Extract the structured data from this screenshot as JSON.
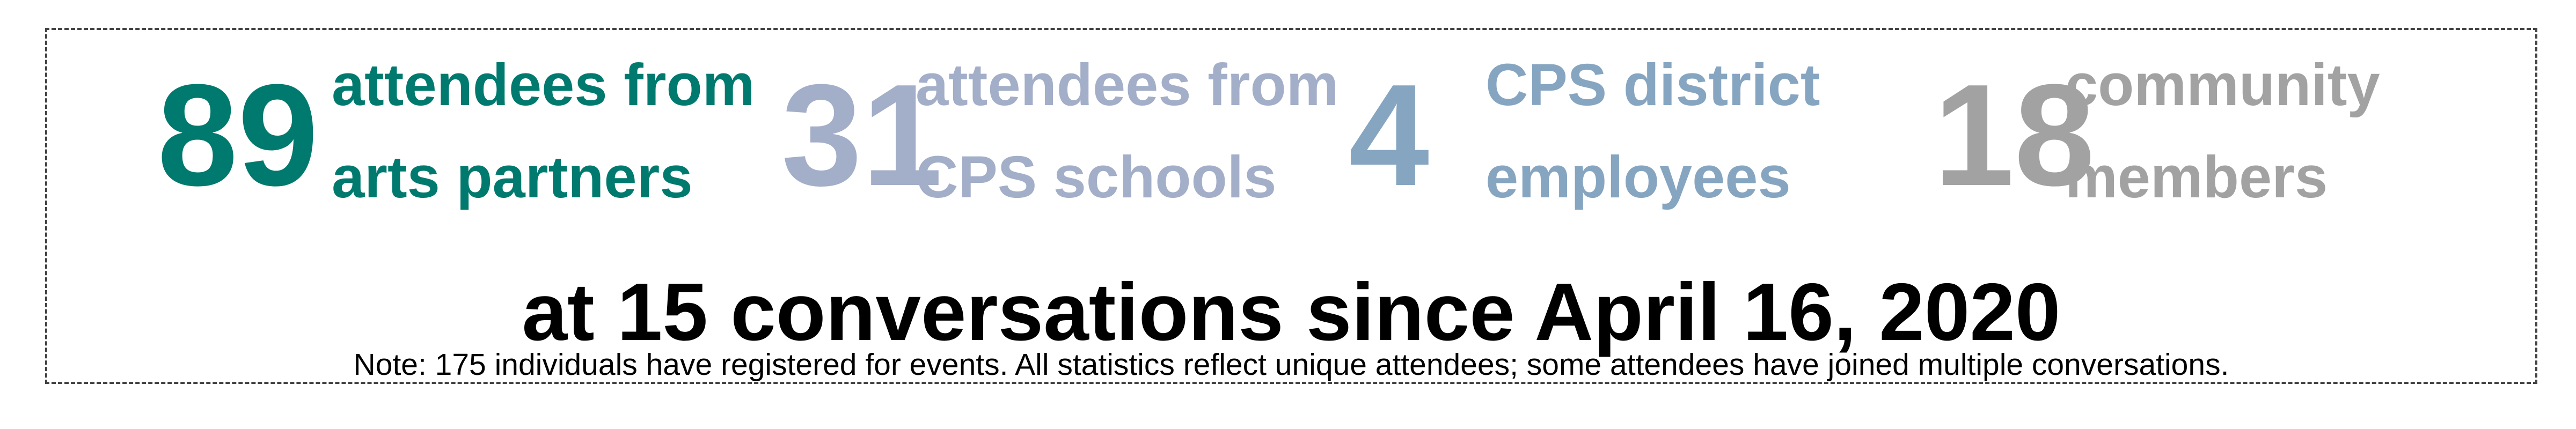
{
  "stats": [
    {
      "number": "89",
      "line1": "attendees from",
      "line2": "arts partners",
      "color": "#007a6e"
    },
    {
      "number": "31",
      "line1": "attendees from",
      "line2": "CPS schools",
      "color": "#a3aec8"
    },
    {
      "number": "4",
      "line1": "CPS district",
      "line2": "employees",
      "color": "#86a5c1"
    },
    {
      "number": "18",
      "line1": "community",
      "line2": "members",
      "color": "#a2a2a2"
    }
  ],
  "headline": "at 15 conversations since April 16, 2020",
  "note": "Note: 175 individuals have registered for events. All statistics reflect unique attendees; some attendees have joined multiple conversations."
}
